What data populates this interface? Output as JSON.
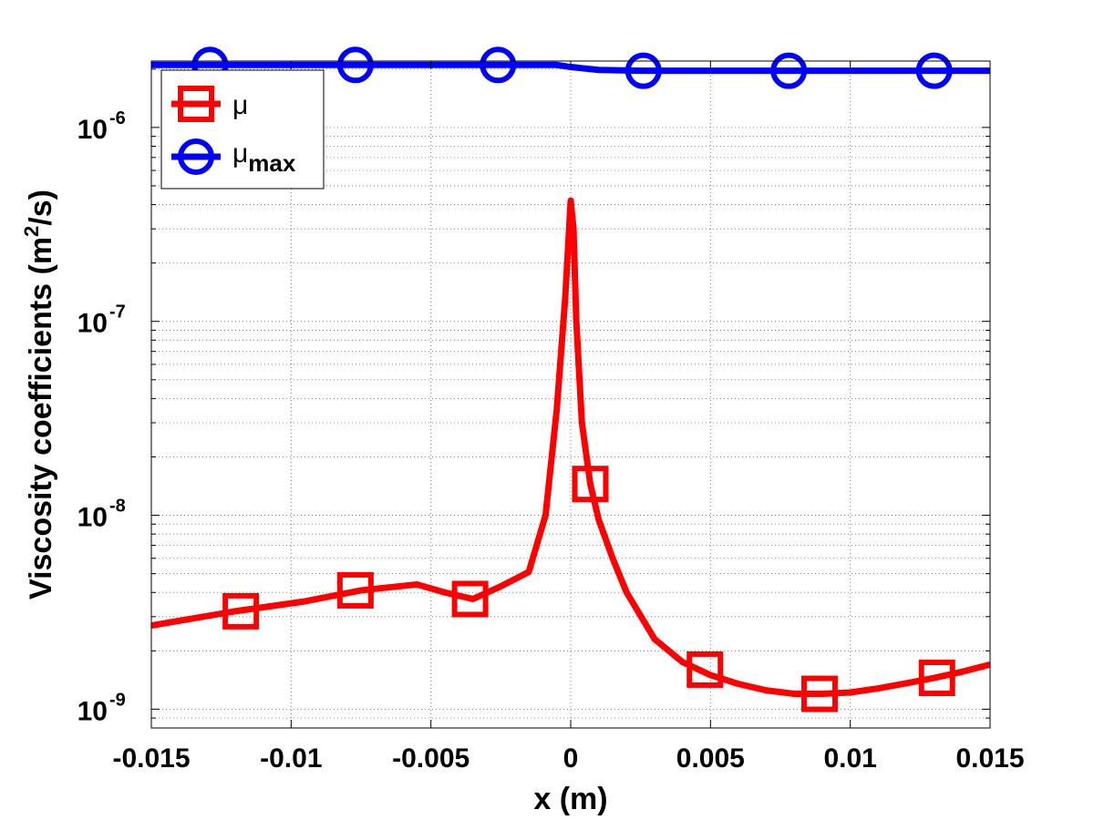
{
  "chart_data": {
    "type": "line",
    "xlabel": "x (m)",
    "ylabel": "Viscosity coefficients (m",
    "ylabel_sup": "2",
    "ylabel_end": "/s)",
    "xlim": [
      -0.015,
      0.015
    ],
    "ylim": [
      8e-10,
      2.2e-06
    ],
    "yscale": "log",
    "grid": true,
    "legend_placement": "top-left",
    "x_ticks": [
      -0.015,
      -0.01,
      -0.005,
      0,
      0.005,
      0.01,
      0.015
    ],
    "x_tick_labels": [
      "-0.015",
      "-0.01",
      "-0.005",
      "0",
      "0.005",
      "0.01",
      "0.015"
    ],
    "y_ticks": [
      1e-09,
      1e-08,
      1e-07,
      1e-06
    ],
    "y_tick_labels": [
      {
        "base": "10",
        "exp": "-9"
      },
      {
        "base": "10",
        "exp": "-8"
      },
      {
        "base": "10",
        "exp": "-7"
      },
      {
        "base": "10",
        "exp": "-6"
      }
    ],
    "series": [
      {
        "name": "μ",
        "color": "#ff0000",
        "marker": "square",
        "x": [
          -0.015,
          -0.012,
          -0.0095,
          -0.0075,
          -0.0055,
          -0.0045,
          -0.0035,
          -0.0025,
          -0.0015,
          -0.0009,
          -0.0005,
          -0.0002,
          0.0,
          0.0001,
          0.0002,
          0.0004,
          0.0007,
          0.001,
          0.0015,
          0.002,
          0.003,
          0.004,
          0.005,
          0.006,
          0.007,
          0.008,
          0.009,
          0.01,
          0.011,
          0.012,
          0.013,
          0.014,
          0.015
        ],
        "y": [
          2.7e-09,
          3.2e-09,
          3.6e-09,
          4.1e-09,
          4.4e-09,
          4e-09,
          3.7e-09,
          4.3e-09,
          5.1e-09,
          1e-08,
          3.5e-08,
          1.3e-07,
          4.2e-07,
          3e-07,
          1e-07,
          3e-08,
          1.45e-08,
          9.5e-09,
          6e-09,
          4e-09,
          2.3e-09,
          1.75e-09,
          1.5e-09,
          1.35e-09,
          1.25e-09,
          1.2e-09,
          1.2e-09,
          1.22e-09,
          1.28e-09,
          1.36e-09,
          1.45e-09,
          1.56e-09,
          1.7e-09
        ],
        "marker_x": [
          -0.0118,
          -0.0077,
          -0.0036,
          0.0007,
          0.0048,
          0.0089,
          0.0131
        ],
        "marker_y": [
          3.2e-09,
          4.1e-09,
          3.7e-09,
          1.45e-08,
          1.6e-09,
          1.2e-09,
          1.45e-09
        ]
      },
      {
        "name": "μ",
        "name_sub": "max",
        "color": "#0000ff",
        "marker": "circle",
        "x": [
          -0.015,
          -0.005,
          -0.0005,
          0.0,
          0.001,
          0.0025,
          0.015
        ],
        "y": [
          2.1e-06,
          2.1e-06,
          2.1e-06,
          2.05e-06,
          1.98e-06,
          1.96e-06,
          1.96e-06
        ],
        "marker_x": [
          -0.0129,
          -0.0077,
          -0.0026,
          0.0026,
          0.0078,
          0.013
        ],
        "marker_y": [
          2.1e-06,
          2.1e-06,
          2.1e-06,
          1.96e-06,
          1.96e-06,
          1.96e-06
        ]
      }
    ]
  }
}
